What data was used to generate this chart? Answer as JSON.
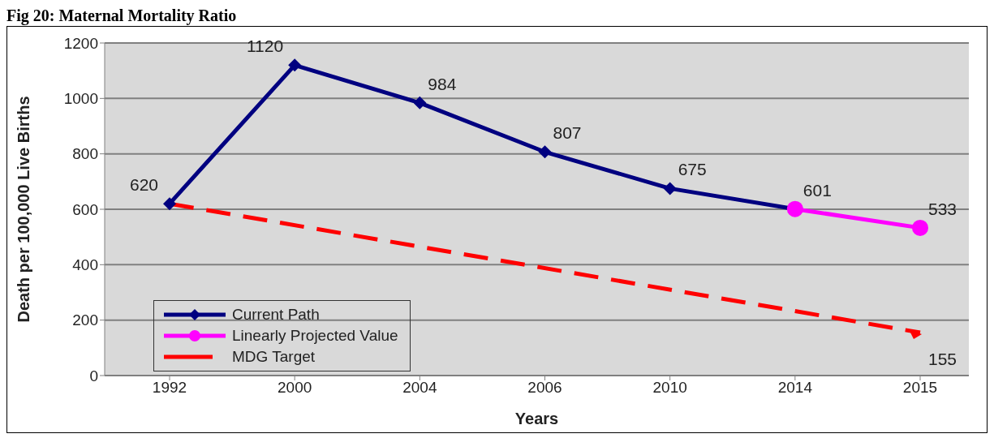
{
  "chart_data": {
    "type": "line",
    "title": "Fig 20: Maternal Mortality Ratio",
    "xlabel": "Years",
    "ylabel": "Death per 100,000 Live Births",
    "categories": [
      "1992",
      "2000",
      "2004",
      "2006",
      "2010",
      "2014",
      "2015"
    ],
    "series": [
      {
        "name": "Current Path",
        "color": "#000080",
        "marker": "diamond",
        "line_style": "solid",
        "values": [
          620,
          1120,
          984,
          807,
          675,
          601,
          null
        ],
        "value_labels": [
          "620",
          "1120",
          "984",
          "807",
          "675",
          "601",
          null
        ]
      },
      {
        "name": "Linearly Projected Value",
        "color": "#ff00ff",
        "marker": "circle",
        "line_style": "solid",
        "values": [
          null,
          null,
          null,
          null,
          null,
          601,
          533
        ],
        "value_labels": [
          null,
          null,
          null,
          null,
          null,
          null,
          "533"
        ]
      },
      {
        "name": "MDG Target",
        "color": "#ff0000",
        "marker": "none",
        "line_style": "dashed",
        "values": [
          620,
          null,
          null,
          null,
          null,
          null,
          155
        ],
        "value_labels": [
          null,
          null,
          null,
          null,
          null,
          null,
          "155"
        ]
      }
    ],
    "ylim": [
      0,
      1200
    ],
    "yticks": [
      0,
      200,
      400,
      600,
      800,
      1000,
      1200
    ],
    "grid": "y",
    "legend": "bottom left"
  }
}
